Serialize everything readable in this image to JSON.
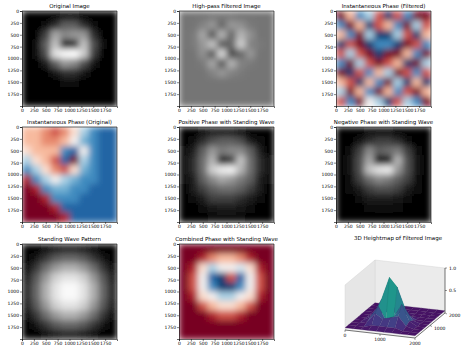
{
  "chart_data": [
    {
      "type": "heatmap",
      "title": "Original Image",
      "color": "gray",
      "xlim": [
        0,
        2000
      ],
      "ylim": [
        2000,
        0
      ],
      "xticks": [
        0,
        250,
        500,
        750,
        1000,
        1250,
        1500,
        1750
      ],
      "yticks": [
        0,
        250,
        500,
        750,
        1000,
        1250,
        1500,
        1750
      ],
      "zlim": [
        0,
        1
      ],
      "cells": [
        [
          0,
          0,
          0,
          0.02,
          0.05,
          0.05,
          0.02,
          0,
          0,
          0
        ],
        [
          0,
          0,
          0.03,
          0.15,
          0.3,
          0.3,
          0.15,
          0.03,
          0,
          0
        ],
        [
          0,
          0.02,
          0.2,
          0.55,
          0.45,
          0.5,
          0.5,
          0.15,
          0.02,
          0
        ],
        [
          0,
          0.03,
          0.3,
          0.65,
          0.1,
          0.15,
          0.65,
          0.25,
          0.03,
          0
        ],
        [
          0,
          0.03,
          0.25,
          0.8,
          0.95,
          1,
          0.7,
          0.2,
          0.02,
          0
        ],
        [
          0,
          0.02,
          0.1,
          0.3,
          0.5,
          0.45,
          0.25,
          0.08,
          0,
          0
        ],
        [
          0,
          0,
          0.02,
          0.08,
          0.15,
          0.15,
          0.08,
          0.02,
          0,
          0
        ],
        [
          0,
          0,
          0,
          0.02,
          0.04,
          0.04,
          0.02,
          0,
          0,
          0
        ],
        [
          0,
          0,
          0,
          0,
          0,
          0,
          0,
          0,
          0,
          0
        ],
        [
          0,
          0,
          0,
          0,
          0,
          0,
          0,
          0,
          0,
          0
        ]
      ]
    },
    {
      "type": "heatmap",
      "title": "High-pass Filtered Image",
      "color": "gray",
      "xlim": [
        0,
        2000
      ],
      "ylim": [
        2000,
        0
      ],
      "xticks": [
        0,
        250,
        500,
        750,
        1000,
        1250,
        1500,
        1750
      ],
      "yticks": [
        0,
        250,
        500,
        750,
        1000,
        1250,
        1500,
        1750
      ],
      "zlim": [
        0,
        1
      ],
      "cells": [
        [
          0.38,
          0.38,
          0.38,
          0.4,
          0.4,
          0.4,
          0.38,
          0.38,
          0.38,
          0.38
        ],
        [
          0.38,
          0.38,
          0.43,
          0.5,
          0.33,
          0.5,
          0.48,
          0.4,
          0.38,
          0.38
        ],
        [
          0.38,
          0.4,
          0.55,
          0.28,
          0.6,
          0.33,
          0.6,
          0.48,
          0.38,
          0.38
        ],
        [
          0.38,
          0.4,
          0.5,
          0.65,
          0.28,
          0.33,
          0.7,
          0.43,
          0.4,
          0.38
        ],
        [
          0.38,
          0.38,
          0.48,
          0.28,
          0.75,
          0.23,
          0.33,
          0.5,
          0.38,
          0.38
        ],
        [
          0.38,
          0.38,
          0.4,
          0.55,
          0.28,
          0.6,
          0.43,
          0.4,
          0.38,
          0.38
        ],
        [
          0.38,
          0.38,
          0.38,
          0.43,
          0.5,
          0.43,
          0.4,
          0.38,
          0.38,
          0.38
        ],
        [
          0.38,
          0.38,
          0.38,
          0.38,
          0.38,
          0.38,
          0.38,
          0.38,
          0.38,
          0.38
        ],
        [
          0.38,
          0.38,
          0.38,
          0.38,
          0.38,
          0.38,
          0.38,
          0.38,
          0.38,
          0.38
        ],
        [
          0.38,
          0.38,
          0.38,
          0.38,
          0.38,
          0.38,
          0.38,
          0.38,
          0.38,
          0.38
        ]
      ]
    },
    {
      "type": "heatmap",
      "title": "Instantaneous Phase (Filtered)",
      "color": "coolwarm",
      "xlim": [
        0,
        2000
      ],
      "ylim": [
        2000,
        0
      ],
      "xticks": [
        0,
        250,
        500,
        750,
        1000,
        1250,
        1500,
        1750
      ],
      "yticks": [
        0,
        250,
        500,
        750,
        1000,
        1250,
        1500,
        1750
      ],
      "zlim": [
        -3.14,
        3.14
      ],
      "cells": [
        [
          3,
          1,
          -2,
          -1,
          2,
          -3,
          2,
          -2,
          3,
          3
        ],
        [
          -2,
          3,
          1,
          -3,
          2,
          1,
          -2,
          3,
          -1,
          2
        ],
        [
          1,
          -2,
          3,
          -1,
          -3,
          -3,
          -1,
          2,
          -3,
          1
        ],
        [
          -3,
          2,
          3,
          -3,
          -2,
          -2,
          -3,
          3,
          2,
          -2
        ],
        [
          2,
          -1,
          2,
          3,
          -3,
          3,
          3,
          1,
          -2,
          3
        ],
        [
          -2,
          3,
          -1,
          2,
          3,
          2,
          1,
          -3,
          3,
          -1
        ],
        [
          3,
          -3,
          2,
          -2,
          1,
          -1,
          3,
          2,
          -2,
          2
        ],
        [
          1,
          2,
          -3,
          1,
          -2,
          3,
          -1,
          -3,
          1,
          -3
        ],
        [
          -1,
          3,
          1,
          -2,
          3,
          1,
          -2,
          2,
          3,
          1
        ],
        [
          2,
          -2,
          3,
          0,
          -1,
          -3,
          2,
          -1,
          -2,
          3
        ]
      ]
    },
    {
      "type": "heatmap",
      "title": "Instantaneous Phase (Original)",
      "color": "coolwarm",
      "xlim": [
        0,
        2000
      ],
      "ylim": [
        2000,
        0
      ],
      "xticks": [
        0,
        250,
        500,
        750,
        1000,
        1250,
        1500,
        1750
      ],
      "yticks": [
        0,
        250,
        500,
        750,
        1000,
        1250,
        1500,
        1750
      ],
      "zlim": [
        -3.14,
        3.14
      ],
      "cells": [
        [
          1,
          1,
          1.5,
          2,
          1.5,
          0.5,
          -1,
          -2,
          -2.5,
          -2.5
        ],
        [
          1,
          1,
          1.5,
          1.5,
          1,
          0,
          -1.5,
          -2,
          -2.5,
          -2.5
        ],
        [
          0.5,
          1,
          1,
          1,
          -2,
          -2.5,
          0,
          -2,
          -2.5,
          -2.5
        ],
        [
          -1,
          0.5,
          1,
          2,
          -2.5,
          3,
          -1,
          -2,
          -2.5,
          -2.5
        ],
        [
          -2,
          -1,
          0.5,
          1.5,
          2,
          0.5,
          -1.5,
          -2,
          -2.5,
          -2.5
        ],
        [
          2.5,
          -2,
          -1,
          0,
          -1,
          -1.5,
          -2,
          -2,
          -2.5,
          -2.5
        ],
        [
          3,
          2.5,
          -2,
          -1.5,
          -1.5,
          -2,
          -2,
          -2.5,
          -2.5,
          -2.5
        ],
        [
          3,
          3,
          2.5,
          -2,
          -2,
          -2,
          -2.5,
          -2.5,
          -2.5,
          -2.5
        ],
        [
          3,
          3,
          3,
          2.5,
          -2.5,
          -2.5,
          -2.5,
          -2.5,
          -2.5,
          -2.5
        ],
        [
          3,
          3,
          3,
          3,
          2.5,
          -2.5,
          -2.5,
          -2.5,
          -2.5,
          -2.5
        ]
      ]
    },
    {
      "type": "heatmap",
      "title": "Positive Phase with Standing Wave",
      "color": "gray",
      "xlim": [
        0,
        2000
      ],
      "ylim": [
        2000,
        0
      ],
      "xticks": [
        0,
        250,
        500,
        750,
        1000,
        1250,
        1500,
        1750
      ],
      "yticks": [
        0,
        250,
        500,
        750,
        1000,
        1250,
        1500,
        1750
      ],
      "zlim": [
        0,
        1
      ],
      "cells": [
        [
          0,
          0,
          0.05,
          0.1,
          0.1,
          0.1,
          0.05,
          0,
          0,
          0
        ],
        [
          0,
          0.05,
          0.15,
          0.25,
          0.3,
          0.3,
          0.25,
          0.1,
          0.05,
          0
        ],
        [
          0.05,
          0.1,
          0.3,
          0.5,
          0.4,
          0.45,
          0.45,
          0.3,
          0.1,
          0
        ],
        [
          0.05,
          0.15,
          0.35,
          0.6,
          0.1,
          0.2,
          0.65,
          0.35,
          0.15,
          0.05
        ],
        [
          0.05,
          0.15,
          0.35,
          0.7,
          0.85,
          0.9,
          0.6,
          0.35,
          0.15,
          0.05
        ],
        [
          0.05,
          0.1,
          0.3,
          0.45,
          0.55,
          0.5,
          0.4,
          0.3,
          0.1,
          0.05
        ],
        [
          0,
          0.1,
          0.2,
          0.3,
          0.35,
          0.35,
          0.3,
          0.2,
          0.1,
          0
        ],
        [
          0,
          0.05,
          0.1,
          0.2,
          0.2,
          0.2,
          0.15,
          0.1,
          0.05,
          0
        ],
        [
          0,
          0,
          0.05,
          0.08,
          0.1,
          0.1,
          0.08,
          0.05,
          0,
          0
        ],
        [
          0,
          0,
          0,
          0.03,
          0.05,
          0.05,
          0.03,
          0,
          0,
          0
        ]
      ]
    },
    {
      "type": "heatmap",
      "title": "Negative Phase with Standing Wave",
      "color": "gray",
      "xlim": [
        0,
        2000
      ],
      "ylim": [
        2000,
        0
      ],
      "xticks": [
        0,
        250,
        500,
        750,
        1000,
        1250,
        1500,
        1750
      ],
      "yticks": [
        0,
        250,
        500,
        750,
        1000,
        1250,
        1500,
        1750
      ],
      "zlim": [
        0,
        1
      ],
      "cells": [
        [
          0,
          0,
          0.02,
          0.05,
          0.05,
          0.05,
          0.02,
          0,
          0,
          0
        ],
        [
          0,
          0.02,
          0.08,
          0.15,
          0.2,
          0.2,
          0.15,
          0.05,
          0.02,
          0
        ],
        [
          0.02,
          0.05,
          0.2,
          0.45,
          0.3,
          0.35,
          0.4,
          0.2,
          0.05,
          0
        ],
        [
          0.02,
          0.08,
          0.25,
          0.55,
          0.05,
          0.1,
          0.6,
          0.25,
          0.08,
          0.02
        ],
        [
          0.02,
          0.08,
          0.25,
          0.65,
          0.8,
          0.85,
          0.5,
          0.25,
          0.08,
          0.02
        ],
        [
          0.02,
          0.05,
          0.2,
          0.35,
          0.45,
          0.4,
          0.3,
          0.2,
          0.05,
          0.02
        ],
        [
          0,
          0.05,
          0.1,
          0.2,
          0.25,
          0.25,
          0.2,
          0.1,
          0.05,
          0
        ],
        [
          0,
          0.02,
          0.05,
          0.1,
          0.1,
          0.1,
          0.08,
          0.05,
          0.02,
          0
        ],
        [
          0,
          0,
          0.02,
          0.04,
          0.05,
          0.05,
          0.04,
          0.02,
          0,
          0
        ],
        [
          0,
          0,
          0,
          0,
          0,
          0,
          0,
          0,
          0,
          0
        ]
      ]
    },
    {
      "type": "heatmap",
      "title": "Standing Wave Pattern",
      "color": "gray",
      "xlim": [
        0,
        2000
      ],
      "ylim": [
        2000,
        0
      ],
      "xticks": [
        0,
        250,
        500,
        750,
        1000,
        1250,
        1500,
        1750
      ],
      "yticks": [
        0,
        250,
        500,
        750,
        1000,
        1250,
        1500,
        1750
      ],
      "zlim": [
        0,
        1
      ],
      "cells": [
        [
          0,
          0.02,
          0.05,
          0.1,
          0.12,
          0.12,
          0.1,
          0.05,
          0.02,
          0
        ],
        [
          0.02,
          0.08,
          0.18,
          0.28,
          0.33,
          0.33,
          0.28,
          0.18,
          0.08,
          0.02
        ],
        [
          0.05,
          0.18,
          0.35,
          0.5,
          0.58,
          0.58,
          0.5,
          0.35,
          0.18,
          0.05
        ],
        [
          0.1,
          0.28,
          0.5,
          0.7,
          0.8,
          0.8,
          0.7,
          0.5,
          0.28,
          0.1
        ],
        [
          0.12,
          0.33,
          0.58,
          0.8,
          0.95,
          0.95,
          0.8,
          0.58,
          0.33,
          0.12
        ],
        [
          0.12,
          0.33,
          0.58,
          0.8,
          0.95,
          0.95,
          0.8,
          0.58,
          0.33,
          0.12
        ],
        [
          0.1,
          0.28,
          0.5,
          0.7,
          0.8,
          0.8,
          0.7,
          0.5,
          0.28,
          0.1
        ],
        [
          0.05,
          0.18,
          0.35,
          0.5,
          0.58,
          0.58,
          0.5,
          0.35,
          0.18,
          0.05
        ],
        [
          0.02,
          0.08,
          0.18,
          0.28,
          0.33,
          0.33,
          0.28,
          0.18,
          0.08,
          0.02
        ],
        [
          0,
          0.02,
          0.05,
          0.1,
          0.12,
          0.12,
          0.1,
          0.05,
          0.02,
          0
        ]
      ]
    },
    {
      "type": "heatmap",
      "title": "Combined Phase with Standing Wave",
      "color": "coolwarm",
      "xlim": [
        0,
        2000
      ],
      "ylim": [
        2000,
        0
      ],
      "xticks": [
        0,
        250,
        500,
        750,
        1000,
        1250,
        1500,
        1750
      ],
      "yticks": [
        0,
        250,
        500,
        750,
        1000,
        1250,
        1500,
        1750
      ],
      "zlim": [
        -3.14,
        3.14
      ],
      "cells": [
        [
          3,
          3,
          3,
          3,
          3,
          3,
          3,
          3,
          3,
          3
        ],
        [
          3,
          3,
          2.5,
          1.5,
          1,
          1,
          1.5,
          2.5,
          3,
          3
        ],
        [
          3,
          2.5,
          0.5,
          -1,
          0,
          0,
          -0.5,
          0.5,
          2.5,
          3
        ],
        [
          3,
          2,
          0,
          -2.5,
          -3,
          2,
          -2.5,
          0,
          2,
          3
        ],
        [
          3,
          2,
          0,
          -2,
          -3,
          -3,
          -2,
          0,
          2,
          3
        ],
        [
          3,
          2.5,
          0.5,
          0,
          -1,
          -1,
          0,
          0.5,
          2.5,
          3
        ],
        [
          3,
          3,
          2,
          1,
          0.5,
          0.5,
          1,
          2,
          3,
          3
        ],
        [
          3,
          3,
          3,
          2.5,
          2,
          2,
          2.5,
          3,
          3,
          3
        ],
        [
          3,
          3,
          3,
          3,
          3,
          3,
          3,
          3,
          3,
          3
        ],
        [
          3,
          3,
          3,
          3,
          3,
          3,
          3,
          3,
          3,
          3
        ]
      ]
    },
    {
      "type": "surface",
      "title": "3D Heightmap of Filtered Image",
      "color": "viridis",
      "xlim": [
        0,
        2000
      ],
      "ylim": [
        0,
        2000
      ],
      "zlim": [
        0,
        1
      ],
      "xticks": [
        0,
        1000,
        2000
      ],
      "yticks": [
        1000,
        2000
      ],
      "zticks": [
        0.5,
        {
          "value": 1,
          "label": "1.0"
        }
      ],
      "heights": [
        [
          0.05,
          0.05,
          0.05,
          0.05,
          0.05,
          0.05,
          0.05,
          0.05,
          0.05,
          0.05
        ],
        [
          0.05,
          0.05,
          0.05,
          0.1,
          0.1,
          0.1,
          0.1,
          0.05,
          0.05,
          0.05
        ],
        [
          0.05,
          0.05,
          0.1,
          0.3,
          0.2,
          0.25,
          0.3,
          0.1,
          0.05,
          0.05
        ],
        [
          0.05,
          0.05,
          0.15,
          0.4,
          0.1,
          0.2,
          0.5,
          0.15,
          0.05,
          0.05
        ],
        [
          0.05,
          0.05,
          0.15,
          0.5,
          1,
          0.8,
          0.35,
          0.1,
          0.05,
          0.05
        ],
        [
          0.05,
          0.05,
          0.1,
          0.2,
          0.3,
          0.25,
          0.15,
          0.05,
          0.05,
          0.05
        ],
        [
          0.05,
          0.05,
          0.05,
          0.1,
          0.1,
          0.1,
          0.05,
          0.05,
          0.05,
          0.05
        ],
        [
          0.05,
          0.05,
          0.05,
          0.05,
          0.05,
          0.05,
          0.05,
          0.05,
          0.05,
          0.05
        ],
        [
          0.05,
          0.05,
          0.05,
          0.05,
          0.05,
          0.05,
          0.05,
          0.05,
          0.05,
          0.05
        ],
        [
          0.05,
          0.05,
          0.05,
          0.05,
          0.05,
          0.05,
          0.05,
          0.05,
          0.05,
          0.05
        ]
      ]
    }
  ]
}
